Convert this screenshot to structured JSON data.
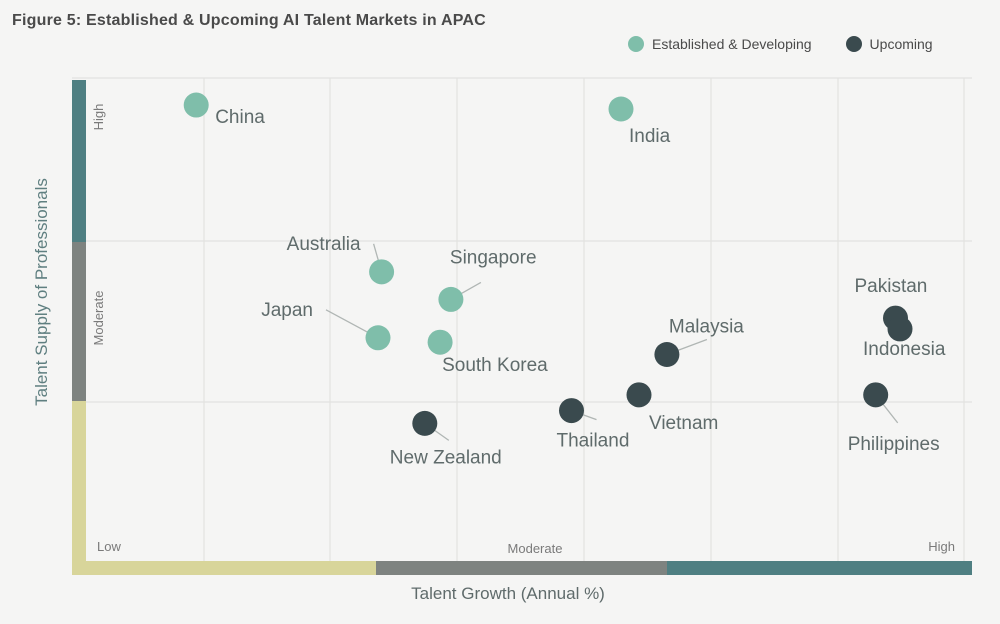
{
  "title": "Figure 5: Established & Upcoming AI Talent Markets in APAC",
  "colors": {
    "established": "#7fbeaa",
    "upcoming": "#3a4a4e",
    "band_low": "#d8d59a",
    "band_moderate": "#7e8380",
    "band_high": "#4f7f82",
    "label_text": "#5f6b6b"
  },
  "chart_data": {
    "type": "scatter",
    "title": "Figure 5: Established & Upcoming AI Talent Markets in APAC",
    "xlabel": "Talent Growth (Annual %)",
    "ylabel": "Talent Supply of Professionals",
    "x_levels": [
      "Low",
      "Moderate",
      "High"
    ],
    "y_levels": [
      "High",
      "Moderate"
    ],
    "xlim": [
      0,
      100
    ],
    "ylim": [
      0,
      100
    ],
    "grid": true,
    "legend_position": "top-right",
    "series": [
      {
        "name": "Established & Developing",
        "points": [
          {
            "label": "China",
            "x": 13.8,
            "y": 94.5
          },
          {
            "label": "India",
            "x": 61.0,
            "y": 93.7
          },
          {
            "label": "Australia",
            "x": 34.4,
            "y": 60.6
          },
          {
            "label": "Singapore",
            "x": 42.1,
            "y": 55.0
          },
          {
            "label": "Japan",
            "x": 34.0,
            "y": 47.2
          },
          {
            "label": "South Korea",
            "x": 40.9,
            "y": 46.3
          }
        ]
      },
      {
        "name": "Upcoming",
        "points": [
          {
            "label": "Pakistan",
            "x": 91.5,
            "y": 51.2
          },
          {
            "label": "Indonesia",
            "x": 92.0,
            "y": 49.0
          },
          {
            "label": "Malaysia",
            "x": 66.1,
            "y": 43.8
          },
          {
            "label": "Vietnam",
            "x": 63.0,
            "y": 35.6
          },
          {
            "label": "Philippines",
            "x": 89.3,
            "y": 35.6
          },
          {
            "label": "Thailand",
            "x": 55.5,
            "y": 32.4
          },
          {
            "label": "New Zealand",
            "x": 39.2,
            "y": 29.8
          }
        ]
      }
    ]
  }
}
